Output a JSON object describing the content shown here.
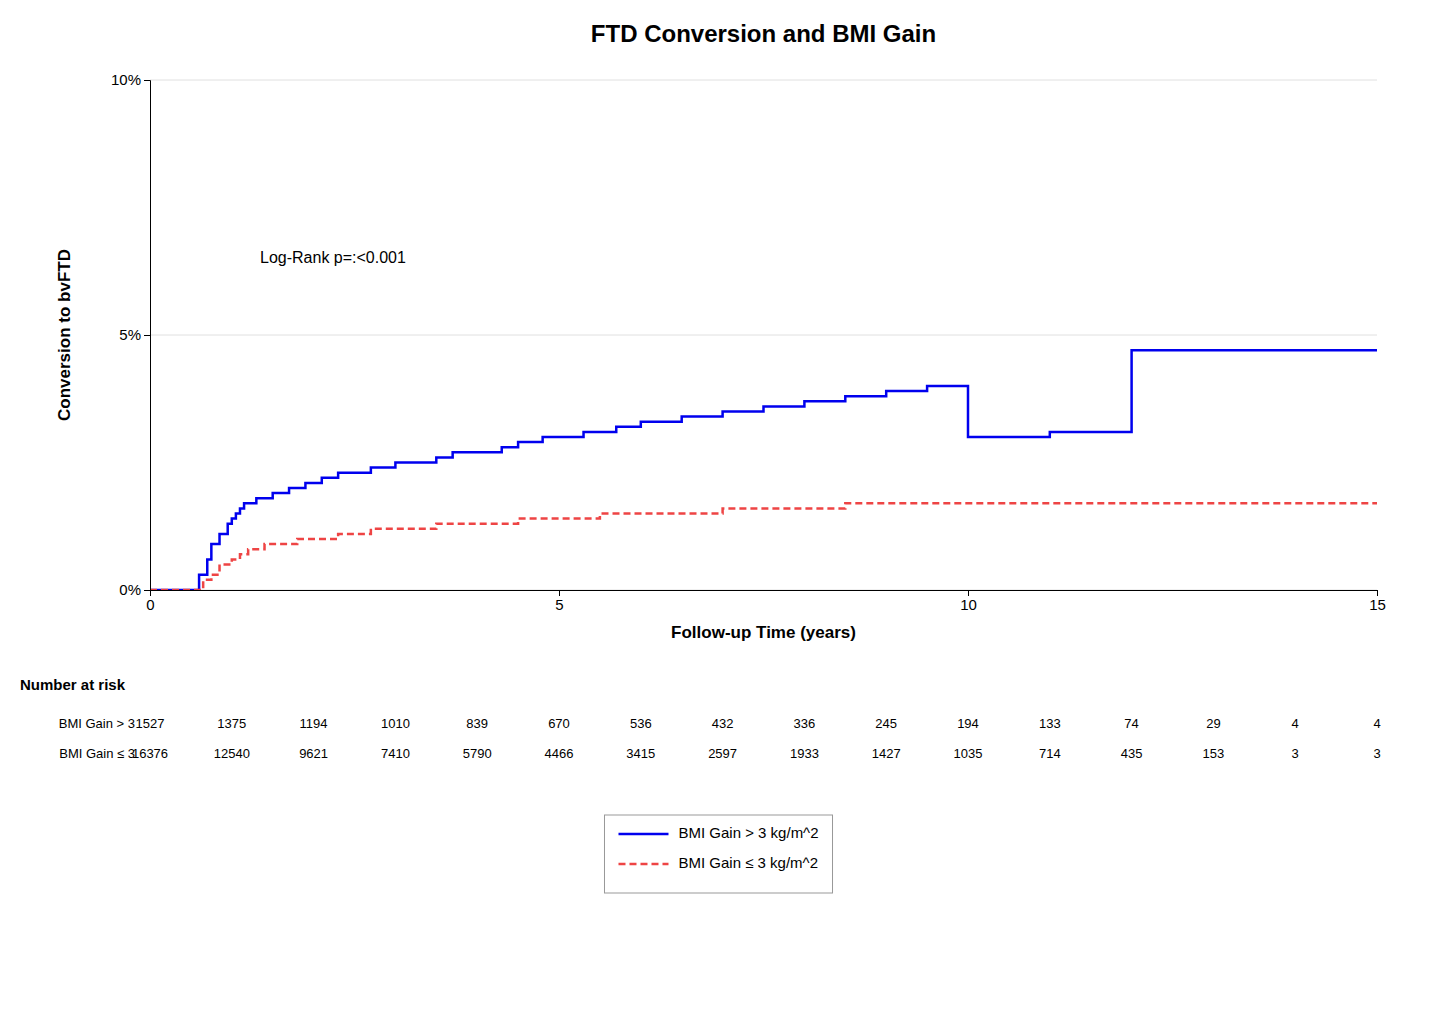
{
  "chart_data": {
    "type": "step",
    "title": "FTD Conversion and BMI Gain",
    "xlabel": "Follow-up Time (years)",
    "ylabel": "Conversion to bvFTD",
    "xlim": [
      0,
      15
    ],
    "ylim": [
      0,
      0.1
    ],
    "xticks": [
      0,
      5,
      10,
      15
    ],
    "yticks": [
      {
        "value": 0,
        "label": "0%"
      },
      {
        "value": 0.05,
        "label": "5%"
      },
      {
        "value": 0.1,
        "label": "10%"
      }
    ],
    "grid": "y",
    "legend": "bottom",
    "annotation": "Log-Rank p=:<0.001",
    "series": [
      {
        "name": "BMI Gain > 3 kg/m^2",
        "color": "#0000EE",
        "line_style": "solid",
        "x": [
          0,
          0.5,
          0.6,
          0.7,
          0.75,
          0.85,
          0.95,
          1.0,
          1.05,
          1.1,
          1.15,
          1.2,
          1.3,
          1.4,
          1.5,
          1.6,
          1.7,
          1.8,
          1.9,
          2.0,
          2.1,
          2.2,
          2.3,
          2.5,
          2.7,
          3.0,
          3.2,
          3.5,
          3.7,
          4.0,
          4.3,
          4.5,
          4.8,
          5.0,
          5.3,
          5.7,
          6.0,
          6.5,
          7.0,
          7.5,
          8.0,
          8.5,
          9.0,
          9.5,
          10.0,
          11.0,
          12.0,
          15.0
        ],
        "values": [
          0,
          0,
          0.003,
          0.006,
          0.009,
          0.011,
          0.013,
          0.014,
          0.015,
          0.016,
          0.017,
          0.017,
          0.018,
          0.018,
          0.019,
          0.019,
          0.02,
          0.02,
          0.021,
          0.021,
          0.022,
          0.022,
          0.023,
          0.023,
          0.024,
          0.025,
          0.025,
          0.026,
          0.027,
          0.027,
          0.028,
          0.029,
          0.03,
          0.03,
          0.031,
          0.032,
          0.033,
          0.034,
          0.035,
          0.036,
          0.037,
          0.038,
          0.039,
          0.04,
          0.03,
          0.031,
          0.047,
          0.047
        ]
      },
      {
        "name": "BMI Gain ≤ 3 kg/m^2",
        "color": "#EE4444",
        "line_style": "dashed",
        "x": [
          0,
          0.5,
          0.65,
          0.75,
          0.85,
          1.0,
          1.1,
          1.2,
          1.4,
          1.6,
          1.8,
          2.0,
          2.3,
          2.7,
          3.0,
          3.5,
          4.0,
          4.5,
          5.0,
          5.5,
          6.0,
          6.5,
          7.0,
          7.5,
          8.0,
          8.5,
          9.0,
          10.0,
          15.0
        ],
        "values": [
          0,
          0,
          0.002,
          0.003,
          0.005,
          0.006,
          0.007,
          0.008,
          0.009,
          0.009,
          0.01,
          0.01,
          0.011,
          0.012,
          0.012,
          0.013,
          0.013,
          0.014,
          0.014,
          0.015,
          0.015,
          0.015,
          0.016,
          0.016,
          0.016,
          0.017,
          0.017,
          0.017,
          0.017
        ]
      }
    ],
    "risk_table": {
      "title": "Number at risk",
      "times": [
        0,
        1,
        2,
        3,
        4,
        5,
        6,
        7,
        8,
        9,
        10,
        11,
        12,
        13,
        14,
        15
      ],
      "rows": [
        {
          "name": "BMI Gain > 3",
          "values": [
            1527,
            1375,
            1194,
            1010,
            839,
            670,
            536,
            432,
            336,
            245,
            194,
            133,
            74,
            29,
            4,
            4
          ]
        },
        {
          "name": "BMI Gain ≤ 3",
          "values": [
            16376,
            12540,
            9621,
            7410,
            5790,
            4466,
            3415,
            2597,
            1933,
            1427,
            1035,
            714,
            435,
            153,
            3,
            3
          ]
        }
      ]
    }
  }
}
